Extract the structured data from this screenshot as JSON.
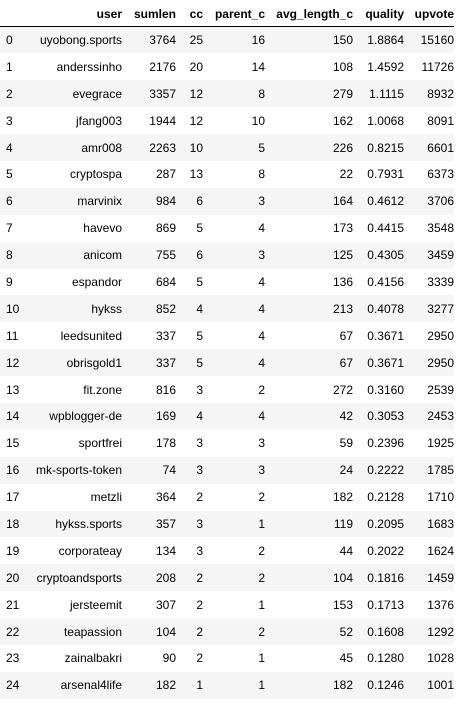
{
  "columns": [
    "user",
    "sumlen",
    "cc",
    "parent_c",
    "avg_length_c",
    "quality",
    "upvote"
  ],
  "rows": [
    {
      "index": "0",
      "user": "uyobong.sports",
      "sumlen": "3764",
      "cc": "25",
      "parent_c": "16",
      "avg_length_c": "150",
      "quality": "1.8864",
      "upvote": "15160"
    },
    {
      "index": "1",
      "user": "anderssinho",
      "sumlen": "2176",
      "cc": "20",
      "parent_c": "14",
      "avg_length_c": "108",
      "quality": "1.4592",
      "upvote": "11726"
    },
    {
      "index": "2",
      "user": "evegrace",
      "sumlen": "3357",
      "cc": "12",
      "parent_c": "8",
      "avg_length_c": "279",
      "quality": "1.1115",
      "upvote": "8932"
    },
    {
      "index": "3",
      "user": "jfang003",
      "sumlen": "1944",
      "cc": "12",
      "parent_c": "10",
      "avg_length_c": "162",
      "quality": "1.0068",
      "upvote": "8091"
    },
    {
      "index": "4",
      "user": "amr008",
      "sumlen": "2263",
      "cc": "10",
      "parent_c": "5",
      "avg_length_c": "226",
      "quality": "0.8215",
      "upvote": "6601"
    },
    {
      "index": "5",
      "user": "cryptospa",
      "sumlen": "287",
      "cc": "13",
      "parent_c": "8",
      "avg_length_c": "22",
      "quality": "0.7931",
      "upvote": "6373"
    },
    {
      "index": "6",
      "user": "marvinix",
      "sumlen": "984",
      "cc": "6",
      "parent_c": "3",
      "avg_length_c": "164",
      "quality": "0.4612",
      "upvote": "3706"
    },
    {
      "index": "7",
      "user": "havevo",
      "sumlen": "869",
      "cc": "5",
      "parent_c": "4",
      "avg_length_c": "173",
      "quality": "0.4415",
      "upvote": "3548"
    },
    {
      "index": "8",
      "user": "anicom",
      "sumlen": "755",
      "cc": "6",
      "parent_c": "3",
      "avg_length_c": "125",
      "quality": "0.4305",
      "upvote": "3459"
    },
    {
      "index": "9",
      "user": "espandor",
      "sumlen": "684",
      "cc": "5",
      "parent_c": "4",
      "avg_length_c": "136",
      "quality": "0.4156",
      "upvote": "3339"
    },
    {
      "index": "10",
      "user": "hykss",
      "sumlen": "852",
      "cc": "4",
      "parent_c": "4",
      "avg_length_c": "213",
      "quality": "0.4078",
      "upvote": "3277"
    },
    {
      "index": "11",
      "user": "leedsunited",
      "sumlen": "337",
      "cc": "5",
      "parent_c": "4",
      "avg_length_c": "67",
      "quality": "0.3671",
      "upvote": "2950"
    },
    {
      "index": "12",
      "user": "obrisgold1",
      "sumlen": "337",
      "cc": "5",
      "parent_c": "4",
      "avg_length_c": "67",
      "quality": "0.3671",
      "upvote": "2950"
    },
    {
      "index": "13",
      "user": "fit.zone",
      "sumlen": "816",
      "cc": "3",
      "parent_c": "2",
      "avg_length_c": "272",
      "quality": "0.3160",
      "upvote": "2539"
    },
    {
      "index": "14",
      "user": "wpblogger-de",
      "sumlen": "169",
      "cc": "4",
      "parent_c": "4",
      "avg_length_c": "42",
      "quality": "0.3053",
      "upvote": "2453"
    },
    {
      "index": "15",
      "user": "sportfrei",
      "sumlen": "178",
      "cc": "3",
      "parent_c": "3",
      "avg_length_c": "59",
      "quality": "0.2396",
      "upvote": "1925"
    },
    {
      "index": "16",
      "user": "mk-sports-token",
      "sumlen": "74",
      "cc": "3",
      "parent_c": "3",
      "avg_length_c": "24",
      "quality": "0.2222",
      "upvote": "1785"
    },
    {
      "index": "17",
      "user": "metzli",
      "sumlen": "364",
      "cc": "2",
      "parent_c": "2",
      "avg_length_c": "182",
      "quality": "0.2128",
      "upvote": "1710"
    },
    {
      "index": "18",
      "user": "hykss.sports",
      "sumlen": "357",
      "cc": "3",
      "parent_c": "1",
      "avg_length_c": "119",
      "quality": "0.2095",
      "upvote": "1683"
    },
    {
      "index": "19",
      "user": "corporateay",
      "sumlen": "134",
      "cc": "3",
      "parent_c": "2",
      "avg_length_c": "44",
      "quality": "0.2022",
      "upvote": "1624"
    },
    {
      "index": "20",
      "user": "cryptoandsports",
      "sumlen": "208",
      "cc": "2",
      "parent_c": "2",
      "avg_length_c": "104",
      "quality": "0.1816",
      "upvote": "1459"
    },
    {
      "index": "21",
      "user": "jersteemit",
      "sumlen": "307",
      "cc": "2",
      "parent_c": "1",
      "avg_length_c": "153",
      "quality": "0.1713",
      "upvote": "1376"
    },
    {
      "index": "22",
      "user": "teapassion",
      "sumlen": "104",
      "cc": "2",
      "parent_c": "2",
      "avg_length_c": "52",
      "quality": "0.1608",
      "upvote": "1292"
    },
    {
      "index": "23",
      "user": "zainalbakri",
      "sumlen": "90",
      "cc": "2",
      "parent_c": "1",
      "avg_length_c": "45",
      "quality": "0.1280",
      "upvote": "1028"
    },
    {
      "index": "24",
      "user": "arsenal4life",
      "sumlen": "182",
      "cc": "1",
      "parent_c": "1",
      "avg_length_c": "182",
      "quality": "0.1246",
      "upvote": "1001"
    }
  ]
}
